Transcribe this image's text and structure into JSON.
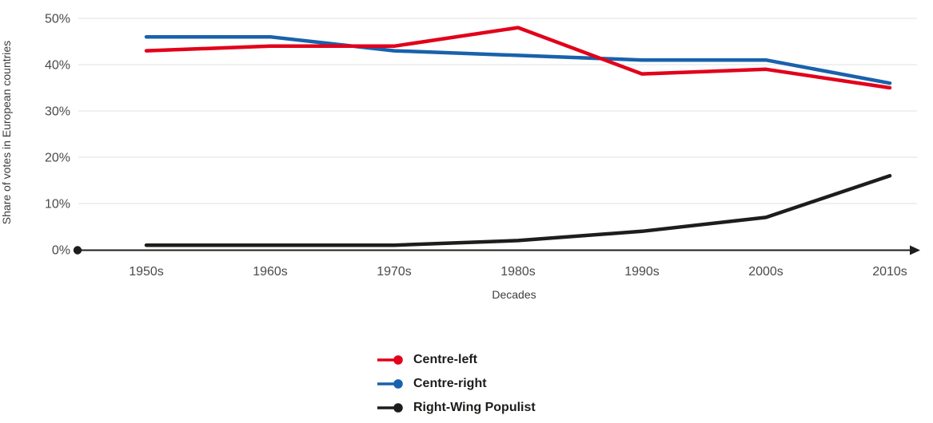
{
  "chart_data": {
    "type": "line",
    "title": "",
    "xlabel": "Decades",
    "ylabel": "Share of votes in European countries",
    "categories": [
      "1950s",
      "1960s",
      "1970s",
      "1980s",
      "1990s",
      "2000s",
      "2010s"
    ],
    "series": [
      {
        "name": "Centre-left",
        "color": "#e2001a",
        "values": [
          43,
          44,
          44,
          48,
          38,
          39,
          35
        ]
      },
      {
        "name": "Centre-right",
        "color": "#1961ac",
        "values": [
          46,
          46,
          43,
          42,
          41,
          41,
          36
        ]
      },
      {
        "name": "Right-Wing Populist",
        "color": "#1d1d1b",
        "values": [
          1,
          1,
          1,
          2,
          4,
          7,
          16
        ]
      }
    ],
    "ylim": [
      0,
      50
    ],
    "yticks": [
      0,
      10,
      20,
      30,
      40,
      50
    ],
    "ytick_suffix": "%",
    "grid": true,
    "gridline_color": "#e6e6e6",
    "axis_color": "#1d1d1b",
    "legend_position": "bottom-center"
  }
}
